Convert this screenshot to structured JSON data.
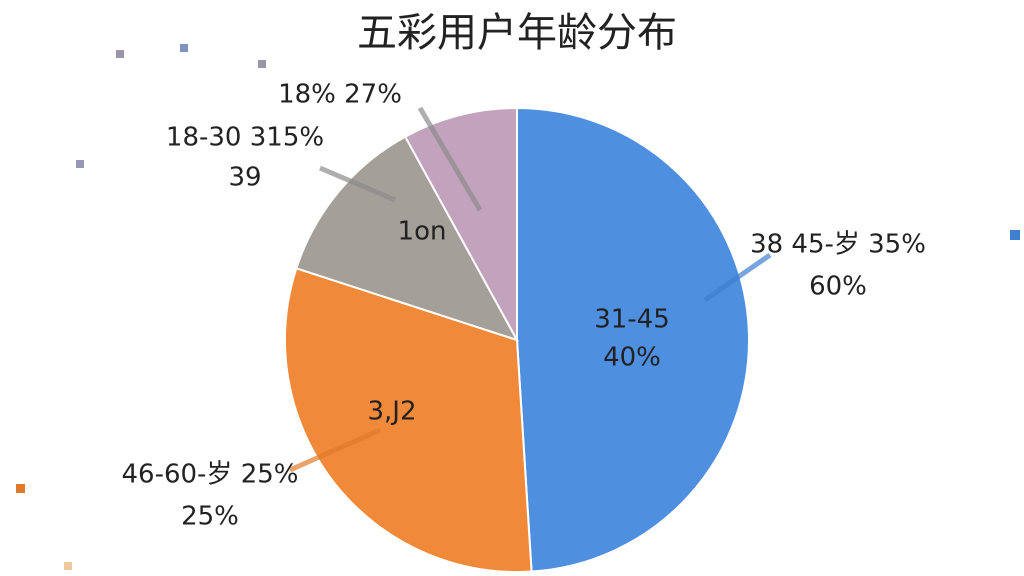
{
  "chart_data": {
    "type": "pie",
    "title": "五彩用户年龄分布",
    "values": [
      49,
      31,
      12,
      8
    ],
    "colors": [
      "#4f8fe0",
      "#f08a3a",
      "#a59f9a",
      "#c2a2bd"
    ],
    "annotations": [
      "18% 27%",
      "18-30 315%",
      "39",
      "1on",
      "38 45-岁 35%",
      "60%",
      "31-45",
      "40%",
      "3,J2",
      "46-60-岁 25%",
      "25%"
    ]
  }
}
